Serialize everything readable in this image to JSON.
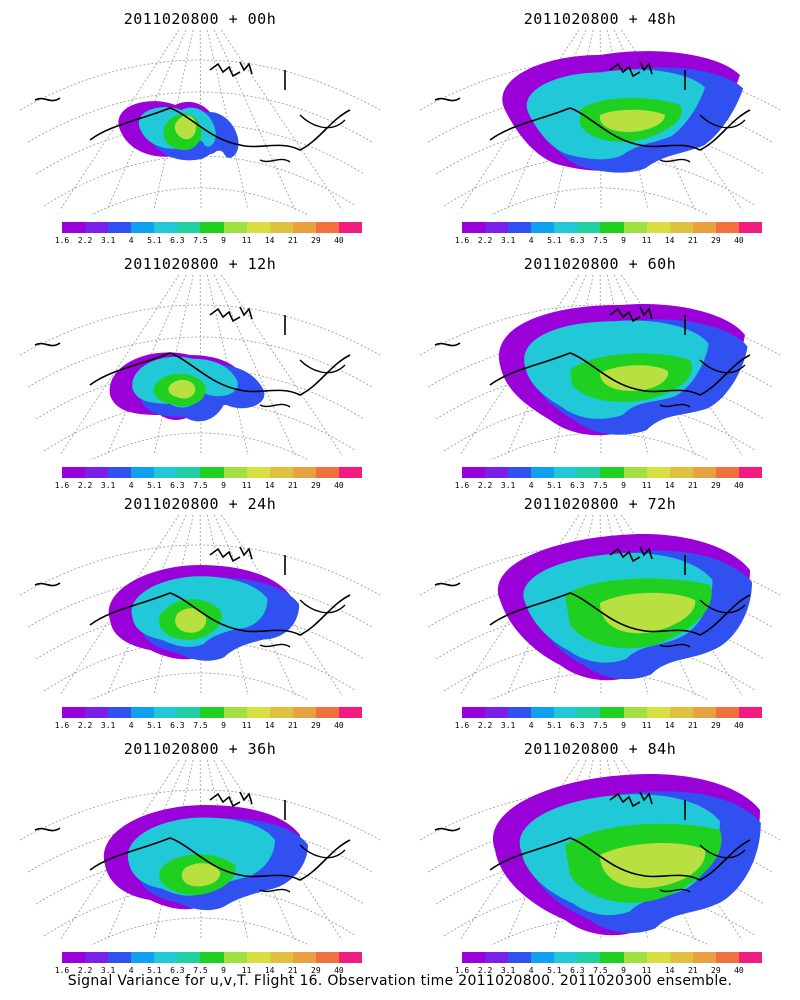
{
  "panels": [
    {
      "title": "2011020800 + 00h"
    },
    {
      "title": "2011020800 + 48h"
    },
    {
      "title": "2011020800 + 12h"
    },
    {
      "title": "2011020800 + 60h"
    },
    {
      "title": "2011020800 + 24h"
    },
    {
      "title": "2011020800 + 72h"
    },
    {
      "title": "2011020800 + 36h"
    },
    {
      "title": "2011020800 + 84h"
    }
  ],
  "colorbar": {
    "labels": [
      "1.6",
      "2.2",
      "3.1",
      "4",
      "5.1",
      "6.3",
      "7.5",
      "9",
      "11",
      "14",
      "21",
      "29",
      "40"
    ],
    "colors": [
      "#9a00d8",
      "#7a20e8",
      "#3050f0",
      "#10a0f0",
      "#20c8d8",
      "#20d0a0",
      "#20d020",
      "#a0e040",
      "#d8e040",
      "#e0c040",
      "#e8a040",
      "#f07040",
      "#f01c80"
    ]
  },
  "caption": "Signal Variance for u,v,T. Flight 16. Observation time 2011020800. 2011020300 ensemble."
}
